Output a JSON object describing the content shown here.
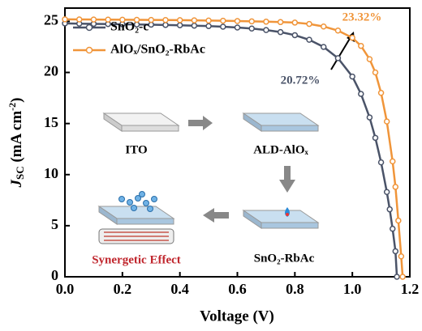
{
  "chart_data": {
    "type": "line",
    "xlabel": "Voltage (V)",
    "ylabel": [
      "J",
      "SC",
      " (mA cm",
      "-2",
      ")"
    ],
    "xlim": [
      0,
      1.2
    ],
    "ylim": [
      0,
      26.3
    ],
    "xticks": [
      {
        "value": 0,
        "label": "0.0"
      },
      {
        "value": 0.2,
        "label": "0.2"
      },
      {
        "value": 0.4,
        "label": "0.4"
      },
      {
        "value": 0.6,
        "label": "0.6"
      },
      {
        "value": 0.8,
        "label": "0.8"
      },
      {
        "value": 1,
        "label": "1.0"
      },
      {
        "value": 1.2,
        "label": "1.2"
      }
    ],
    "yticks": [
      0,
      5,
      10,
      15,
      20,
      25
    ],
    "series": [
      {
        "name": "SnO₂-c",
        "color": "#4a5368",
        "x": [
          0,
          0.05,
          0.1,
          0.15,
          0.2,
          0.25,
          0.3,
          0.35,
          0.4,
          0.45,
          0.5,
          0.55,
          0.6,
          0.65,
          0.7,
          0.75,
          0.8,
          0.85,
          0.9,
          0.95,
          1.0,
          1.03,
          1.06,
          1.08,
          1.1,
          1.12,
          1.13,
          1.14,
          1.15,
          1.155
        ],
        "values": [
          24.8,
          24.78,
          24.76,
          24.74,
          24.72,
          24.7,
          24.68,
          24.65,
          24.62,
          24.58,
          24.54,
          24.48,
          24.4,
          24.3,
          24.15,
          23.95,
          23.65,
          23.2,
          22.5,
          21.4,
          19.6,
          17.9,
          15.6,
          13.6,
          11.2,
          8.3,
          6.6,
          4.7,
          2.5,
          0
        ]
      },
      {
        "name": "AlOₓ/SnO₂-RbAc",
        "color": "#f0953a",
        "x": [
          0,
          0.05,
          0.1,
          0.15,
          0.2,
          0.25,
          0.3,
          0.35,
          0.4,
          0.45,
          0.5,
          0.55,
          0.6,
          0.65,
          0.7,
          0.75,
          0.8,
          0.85,
          0.9,
          0.95,
          1.0,
          1.03,
          1.06,
          1.08,
          1.1,
          1.12,
          1.14,
          1.15,
          1.16,
          1.17,
          1.175
        ],
        "values": [
          25.2,
          25.19,
          25.18,
          25.17,
          25.16,
          25.15,
          25.14,
          25.13,
          25.12,
          25.1,
          25.08,
          25.06,
          25.03,
          25.0,
          24.97,
          24.93,
          24.88,
          24.75,
          24.5,
          24.1,
          23.4,
          22.6,
          21.3,
          20.0,
          18.0,
          15.2,
          11.3,
          8.8,
          5.5,
          2.0,
          0
        ]
      }
    ],
    "annotations": [
      "23.32%",
      "20.72%"
    ],
    "inset_labels": [
      "ITO",
      "ALD-AlOₓ",
      "SnO₂-RbAc",
      "Synergetic Effect"
    ]
  }
}
